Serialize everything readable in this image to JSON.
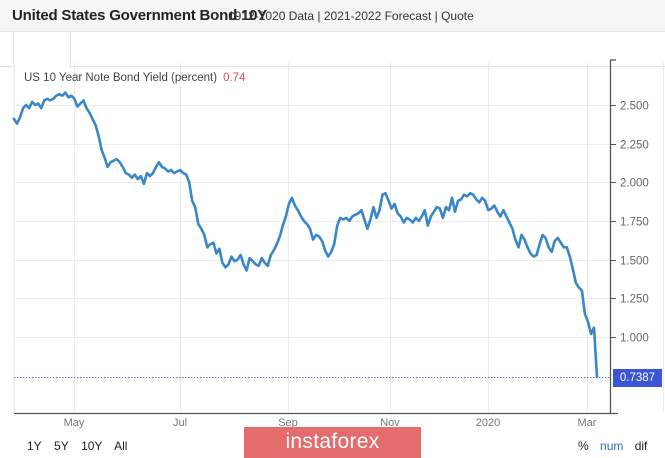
{
  "header": {
    "title": "United States Government Bond 10Y",
    "links": [
      {
        "label": "1912-2020 Data"
      },
      {
        "label": "2021-2022 Forecast"
      },
      {
        "label": "Quote"
      }
    ],
    "separator": " | "
  },
  "legend": {
    "series_name": "US 10 Year Note Bond Yield (percent)",
    "last_value": "0.74"
  },
  "last_price_label": "0.7387",
  "range_buttons": [
    "1Y",
    "5Y",
    "10Y",
    "All"
  ],
  "mode_buttons": {
    "pct": "%",
    "num": "num",
    "dif": "dif"
  },
  "watermark": "instaforex",
  "colors": {
    "line": "#3a86c8",
    "last_badge": "#3b55d6",
    "legend_value": "#d9534f",
    "watermark_bg": "#e46c6c",
    "mode_active": "#2a6fb5"
  },
  "chart_data": {
    "type": "line",
    "title": "US 10 Year Note Bond Yield (percent)",
    "xlabel": "",
    "ylabel": "",
    "x_tick_labels": [
      "May",
      "Jul",
      "Sep",
      "Nov",
      "2020",
      "Mar"
    ],
    "y_tick_labels": [
      "1.000",
      "1.250",
      "1.500",
      "1.750",
      "2.000",
      "2.250",
      "2.500"
    ],
    "y_ticks": [
      1.0,
      1.25,
      1.5,
      1.75,
      2.0,
      2.25,
      2.5
    ],
    "ylim": [
      0.65,
      2.62
    ],
    "x_range": [
      "2019-03",
      "2020-03"
    ],
    "grid": true,
    "y_axis_side": "right",
    "last_value": 0.7387,
    "last_value_line": "dotted horizontal",
    "series": [
      {
        "name": "US 10 Year Note Bond Yield",
        "x_index_range": [
          0,
          1
        ],
        "values": [
          2.41,
          2.38,
          2.42,
          2.48,
          2.5,
          2.48,
          2.52,
          2.5,
          2.51,
          2.48,
          2.53,
          2.54,
          2.53,
          2.54,
          2.56,
          2.57,
          2.56,
          2.58,
          2.55,
          2.56,
          2.54,
          2.49,
          2.51,
          2.53,
          2.48,
          2.45,
          2.41,
          2.37,
          2.3,
          2.21,
          2.16,
          2.1,
          2.13,
          2.14,
          2.15,
          2.13,
          2.1,
          2.06,
          2.05,
          2.03,
          2.05,
          2.02,
          2.04,
          1.99,
          2.06,
          2.04,
          2.06,
          2.1,
          2.13,
          2.1,
          2.09,
          2.07,
          2.08,
          2.06,
          2.07,
          2.08,
          2.06,
          2.05,
          2.0,
          1.88,
          1.84,
          1.73,
          1.7,
          1.66,
          1.58,
          1.6,
          1.61,
          1.54,
          1.57,
          1.48,
          1.45,
          1.47,
          1.52,
          1.49,
          1.5,
          1.53,
          1.47,
          1.43,
          1.51,
          1.49,
          1.47,
          1.46,
          1.51,
          1.48,
          1.46,
          1.53,
          1.56,
          1.6,
          1.65,
          1.72,
          1.78,
          1.86,
          1.9,
          1.85,
          1.82,
          1.78,
          1.75,
          1.73,
          1.7,
          1.63,
          1.66,
          1.65,
          1.62,
          1.56,
          1.52,
          1.55,
          1.6,
          1.72,
          1.77,
          1.76,
          1.77,
          1.75,
          1.78,
          1.79,
          1.8,
          1.82,
          1.76,
          1.7,
          1.76,
          1.84,
          1.77,
          1.82,
          1.92,
          1.93,
          1.88,
          1.83,
          1.86,
          1.8,
          1.78,
          1.74,
          1.77,
          1.76,
          1.74,
          1.77,
          1.75,
          1.78,
          1.82,
          1.72,
          1.78,
          1.81,
          1.84,
          1.83,
          1.77,
          1.84,
          1.82,
          1.9,
          1.81,
          1.88,
          1.89,
          1.92,
          1.91,
          1.93,
          1.92,
          1.89,
          1.87,
          1.9,
          1.88,
          1.82,
          1.83,
          1.85,
          1.81,
          1.78,
          1.82,
          1.78,
          1.74,
          1.7,
          1.63,
          1.58,
          1.66,
          1.63,
          1.58,
          1.54,
          1.52,
          1.53,
          1.6,
          1.66,
          1.64,
          1.58,
          1.55,
          1.62,
          1.64,
          1.61,
          1.58,
          1.58,
          1.52,
          1.44,
          1.35,
          1.32,
          1.3,
          1.15,
          1.1,
          1.02,
          1.06,
          0.74
        ]
      }
    ]
  }
}
